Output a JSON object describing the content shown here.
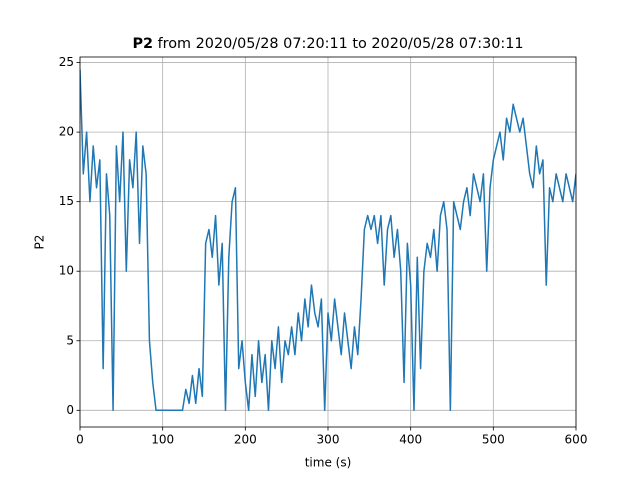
{
  "chart_data": {
    "type": "line",
    "title_bold": "P2",
    "title": "from 2020/05/28 07:20:11 to 2020/05/28 07:30:11",
    "x_label": "time (s)",
    "y_label": "P2",
    "x": [
      0,
      4,
      8,
      12,
      16,
      20,
      24,
      28,
      32,
      36,
      40,
      44,
      48,
      52,
      56,
      60,
      64,
      68,
      72,
      76,
      80,
      84,
      88,
      92,
      96,
      100,
      104,
      108,
      112,
      116,
      120,
      124,
      128,
      132,
      136,
      140,
      144,
      148,
      152,
      156,
      160,
      164,
      168,
      172,
      176,
      180,
      184,
      188,
      192,
      196,
      200,
      204,
      208,
      212,
      216,
      220,
      224,
      228,
      232,
      236,
      240,
      244,
      248,
      252,
      256,
      260,
      264,
      268,
      272,
      276,
      280,
      284,
      288,
      292,
      296,
      300,
      304,
      308,
      312,
      316,
      320,
      324,
      328,
      332,
      336,
      340,
      344,
      348,
      352,
      356,
      360,
      364,
      368,
      372,
      376,
      380,
      384,
      388,
      392,
      396,
      400,
      404,
      408,
      412,
      416,
      420,
      424,
      428,
      432,
      436,
      440,
      444,
      448,
      452,
      456,
      460,
      464,
      468,
      472,
      476,
      480,
      484,
      488,
      492,
      496,
      500,
      504,
      508,
      512,
      516,
      520,
      524,
      528,
      532,
      536,
      540,
      544,
      548,
      552,
      556,
      560,
      564,
      568,
      572,
      576,
      580,
      584,
      588,
      592,
      596,
      600
    ],
    "series": [
      {
        "name": "P2",
        "color": "#1f77b4",
        "values": [
          24.5,
          17,
          20,
          15,
          19,
          16,
          18,
          3,
          17,
          14,
          0,
          19,
          15,
          20,
          10,
          18,
          16,
          20,
          12,
          19,
          17,
          5,
          2,
          0,
          0,
          0,
          0,
          0,
          0,
          0,
          0,
          0,
          1.5,
          0.5,
          2.5,
          0.5,
          3,
          1,
          12,
          13,
          11,
          14,
          9,
          12,
          0,
          11,
          15,
          16,
          3,
          5,
          2,
          0,
          4,
          1,
          5,
          2,
          4,
          0,
          5,
          3,
          6,
          2,
          5,
          4,
          6,
          4,
          7,
          5,
          8,
          6,
          9,
          7,
          6,
          8,
          0,
          7,
          5,
          8,
          6,
          4,
          7,
          5,
          3,
          6,
          4,
          8,
          13,
          14,
          13,
          14,
          12,
          14,
          9,
          13,
          14,
          11,
          13,
          10,
          2,
          12,
          9,
          0,
          11,
          3,
          10,
          12,
          11,
          13,
          10,
          14,
          15,
          13,
          0,
          15,
          14,
          13,
          15,
          16,
          14,
          17,
          16,
          15,
          17,
          10,
          16,
          18,
          19,
          20,
          18,
          21,
          20,
          22,
          21,
          20,
          21,
          19,
          17,
          16,
          19,
          17,
          18,
          9,
          16,
          15,
          17,
          16,
          15,
          17,
          16,
          15,
          17
        ]
      }
    ],
    "xlim": [
      0,
      600
    ],
    "xticks": [
      0,
      100,
      200,
      300,
      400,
      500,
      600
    ],
    "ylim": [
      -1.2,
      25.4
    ],
    "yticks": [
      0,
      5,
      10,
      15,
      20,
      25
    ],
    "grid": true
  }
}
